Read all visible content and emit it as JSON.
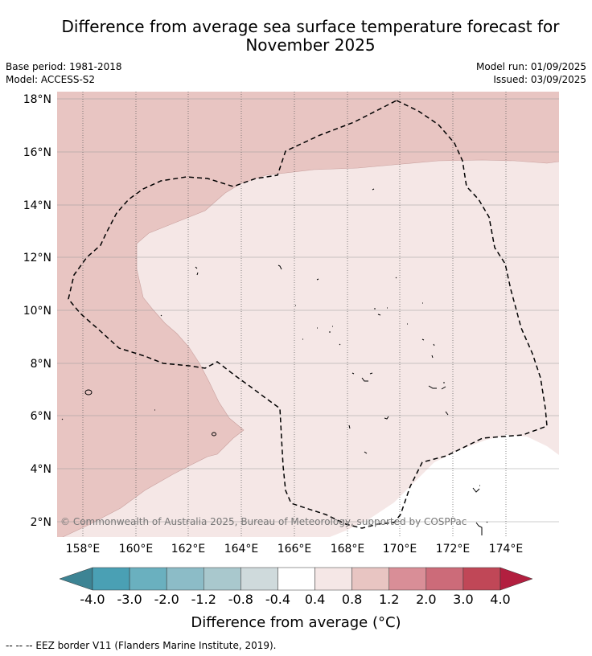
{
  "title_line1": "Difference from average sea surface temperature forecast for",
  "title_line2": "November 2025",
  "base_period": "Base period: 1981-2018",
  "model": "Model: ACCESS-S2",
  "model_run": "Model run: 01/09/2025",
  "issued": "Issued: 03/09/2025",
  "copyright": "© Commonwealth of Australia 2025, Bureau of Meteorology, supported by COSPPac",
  "lat_labels": [
    "18°N",
    "16°N",
    "14°N",
    "12°N",
    "10°N",
    "8°N",
    "6°N",
    "4°N",
    "2°N"
  ],
  "lon_labels": [
    "158°E",
    "160°E",
    "162°E",
    "164°E",
    "166°E",
    "168°E",
    "170°E",
    "172°E",
    "174°E"
  ],
  "colorbar": {
    "labels": [
      "-4.0",
      "-3.0",
      "-2.0",
      "-1.2",
      "-0.8",
      "-0.4",
      "0.4",
      "0.8",
      "1.2",
      "2.0",
      "3.0",
      "4.0"
    ],
    "colors": [
      "#4aa0b4",
      "#6ab0bf",
      "#8cbcc7",
      "#a9c8cd",
      "#cfdadc",
      "#ffffff",
      "#f5e7e6",
      "#e8c5c2",
      "#d98e97",
      "#cc6b79",
      "#c04757"
    ],
    "under_color": "#3d8494",
    "over_color": "#b21f3f",
    "label": "Difference from average ($^\\circ$C)"
  },
  "map_colors": {
    "band_0_4_0_8": "#f5e7e6",
    "band_0_8_1_2": "#e8c5c2"
  },
  "footer": "--  --  -- EEZ border V11 (Flanders Marine Institute, 2019)."
}
